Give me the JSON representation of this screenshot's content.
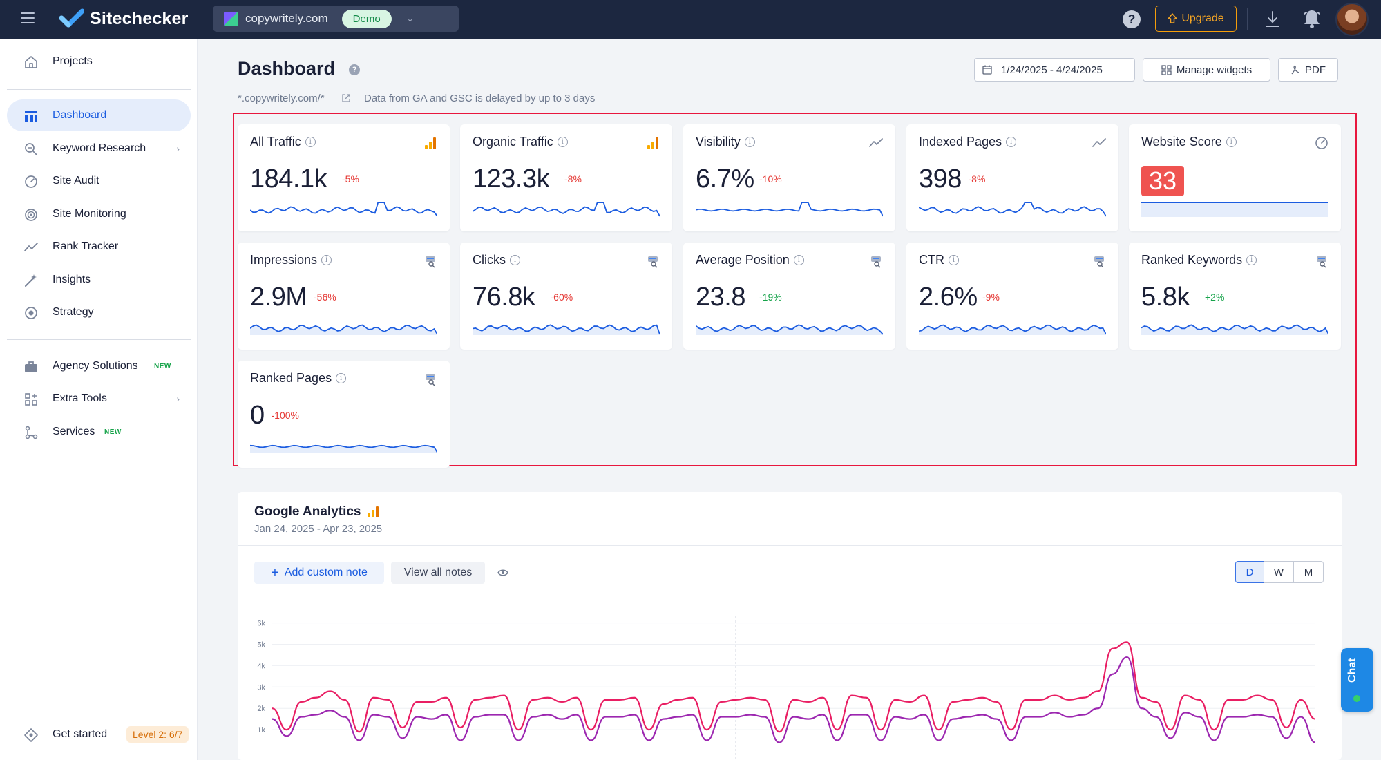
{
  "app": {
    "name": "Sitechecker"
  },
  "project": {
    "domain": "copywritely.com",
    "badge": "Demo"
  },
  "header": {
    "upgrade_label": "Upgrade"
  },
  "sidebar": {
    "items": [
      {
        "label": "Projects"
      },
      {
        "label": "Dashboard"
      },
      {
        "label": "Keyword Research"
      },
      {
        "label": "Site Audit"
      },
      {
        "label": "Site Monitoring"
      },
      {
        "label": "Rank Tracker"
      },
      {
        "label": "Insights"
      },
      {
        "label": "Strategy"
      },
      {
        "label": "Agency Solutions",
        "tag": "NEW"
      },
      {
        "label": "Extra Tools"
      },
      {
        "label": "Services",
        "tag": "NEW"
      }
    ],
    "get_started": {
      "label": "Get started",
      "level": "Level 2: 6/7"
    }
  },
  "page": {
    "title": "Dashboard",
    "domain_pattern": "*.copywritely.com/*",
    "note": "Data from GA and GSC is delayed by up to 3 days",
    "date_range": "1/24/2025 - 4/24/2025",
    "manage_widgets": "Manage widgets",
    "pdf": "PDF"
  },
  "widgets": [
    {
      "title": "All Traffic",
      "value": "184.1k",
      "delta": "-5%",
      "trend": "neg",
      "icon": "analytics-icon"
    },
    {
      "title": "Organic Traffic",
      "value": "123.3k",
      "delta": "-8%",
      "trend": "neg",
      "icon": "analytics-icon"
    },
    {
      "title": "Visibility",
      "value": "6.7%",
      "delta": "-10%",
      "trend": "neg",
      "icon": "trend-icon"
    },
    {
      "title": "Indexed Pages",
      "value": "398",
      "delta": "-8%",
      "trend": "neg",
      "icon": "trend-icon"
    },
    {
      "title": "Website Score",
      "value": "33",
      "icon": "gauge-icon"
    },
    {
      "title": "Impressions",
      "value": "2.9M",
      "delta": "-56%",
      "trend": "neg",
      "icon": "search-console-icon"
    },
    {
      "title": "Clicks",
      "value": "76.8k",
      "delta": "-60%",
      "trend": "neg",
      "icon": "search-console-icon"
    },
    {
      "title": "Average Position",
      "value": "23.8",
      "delta": "-19%",
      "trend": "pos",
      "icon": "search-console-icon"
    },
    {
      "title": "CTR",
      "value": "2.6%",
      "delta": "-9%",
      "trend": "neg",
      "icon": "search-console-icon"
    },
    {
      "title": "Ranked Keywords",
      "value": "5.8k",
      "delta": "+2%",
      "trend": "pos",
      "icon": "search-console-icon"
    },
    {
      "title": "Ranked Pages",
      "value": "0",
      "delta": "-100%",
      "trend": "neg",
      "icon": "search-console-icon"
    }
  ],
  "ga": {
    "title": "Google Analytics",
    "date_range": "Jan 24, 2025 - Apr 23, 2025",
    "add_note": "Add custom note",
    "view_notes": "View all notes",
    "granularity": [
      "D",
      "W",
      "M"
    ],
    "selected_granularity": "D"
  },
  "chart_data": {
    "type": "line",
    "y_ticks": [
      "6k",
      "5k",
      "4k",
      "3k",
      "2k",
      "1k"
    ],
    "ylim": [
      0,
      6000
    ],
    "series": [
      {
        "color": "#e91e63",
        "values": [
          2000,
          1000,
          2300,
          2500,
          2800,
          2400,
          900,
          2500,
          2400,
          1100,
          2300,
          2300,
          2500,
          1100,
          2400,
          2500,
          2600,
          1000,
          2400,
          2500,
          2300,
          2500,
          1000,
          2400,
          2400,
          2500,
          1000,
          2200,
          2400,
          2500,
          1000,
          2300,
          2400,
          2500,
          2400,
          900,
          2400,
          2300,
          2500,
          1000,
          2600,
          2500,
          1000,
          2400,
          2300,
          2600,
          1000,
          2300,
          2400,
          2500,
          2300,
          1000,
          2400,
          2400,
          2600,
          2400,
          2500,
          2800,
          4800,
          5100,
          2500,
          2300,
          1000,
          2600,
          2400,
          1000,
          2400,
          2400,
          2600,
          2400,
          1100,
          2400,
          1500
        ]
      },
      {
        "color": "#9c27b0",
        "values": [
          1500,
          700,
          1600,
          1700,
          1900,
          1600,
          500,
          1700,
          1600,
          600,
          1600,
          1500,
          1700,
          500,
          1600,
          1700,
          1700,
          500,
          1600,
          1700,
          1500,
          1700,
          500,
          1600,
          1600,
          1700,
          500,
          1500,
          1600,
          1700,
          500,
          1600,
          1600,
          1700,
          1600,
          400,
          1600,
          1500,
          1700,
          500,
          1700,
          1700,
          500,
          1600,
          1500,
          1700,
          500,
          1500,
          1600,
          1700,
          1500,
          500,
          1600,
          1600,
          1800,
          1600,
          1700,
          2000,
          3600,
          4400,
          2000,
          1600,
          600,
          1800,
          1600,
          500,
          1600,
          1600,
          1700,
          1600,
          600,
          1600,
          400
        ]
      }
    ],
    "grid": true,
    "vertical_marker_index": 32
  }
}
